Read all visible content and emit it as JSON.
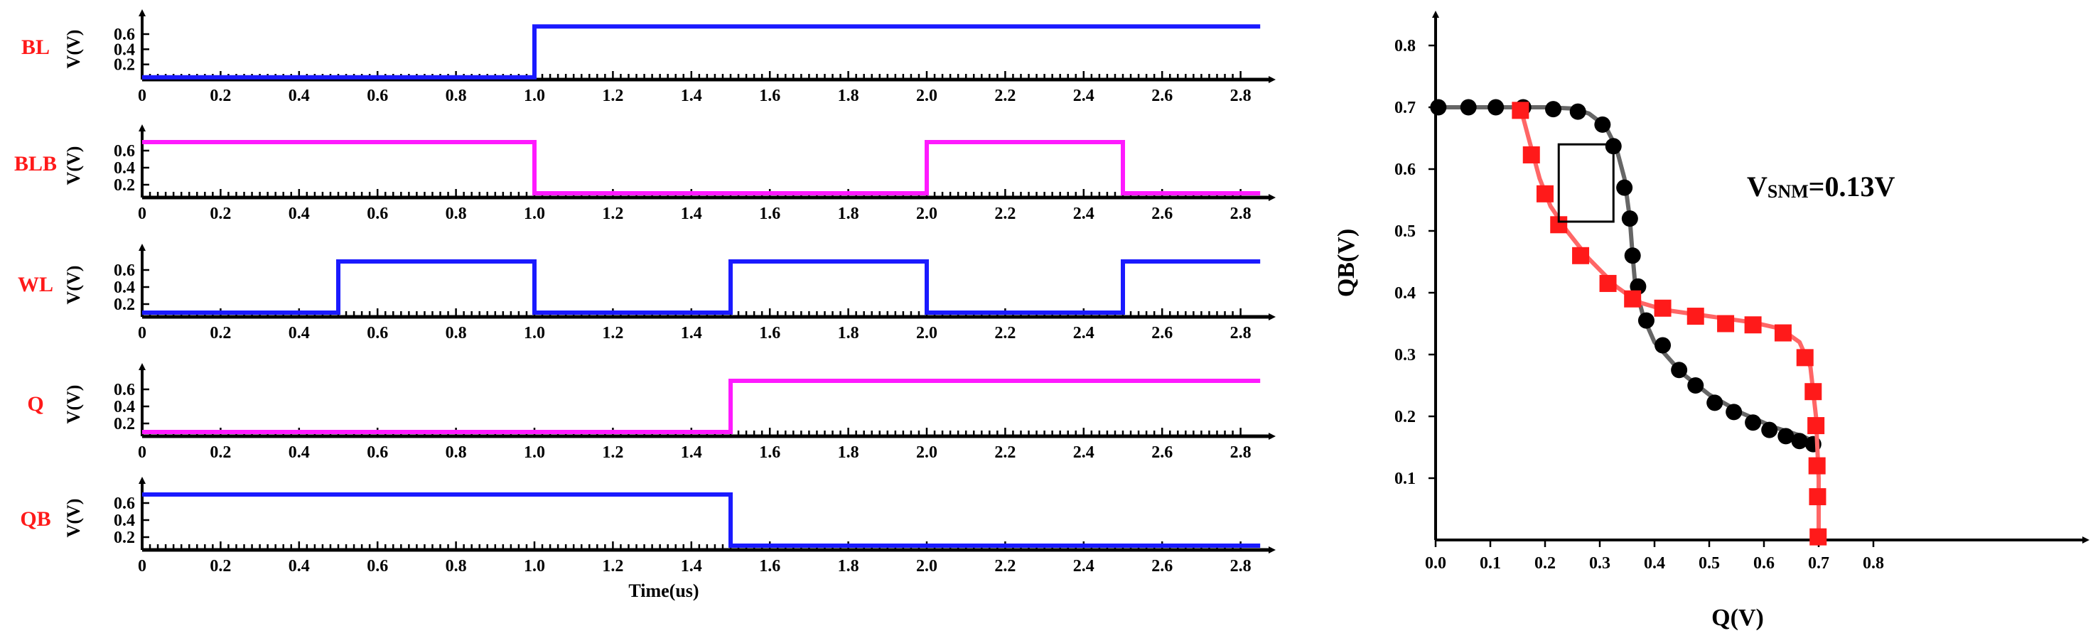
{
  "chart_data": [
    {
      "type": "line",
      "name": "timing-diagram",
      "xlabel": "Time(us)",
      "ylabel": "V(V)",
      "xlim": [
        0,
        2.8
      ],
      "x_ticks": [
        "0",
        "0.2",
        "0.4",
        "0.6",
        "0.8",
        "1.0",
        "1.2",
        "1.4",
        "1.6",
        "1.8",
        "2.0",
        "2.2",
        "2.4",
        "2.6",
        "2.8"
      ],
      "panels": [
        {
          "label": "BL",
          "color": "#1a1aff",
          "y_ticks": [
            "0.2",
            "0.4",
            "0.6"
          ],
          "y_tick_values": [
            0.2,
            0.4,
            0.6
          ],
          "ylim": [
            0,
            0.75
          ],
          "waveform": [
            [
              0,
              0.03
            ],
            [
              1.0,
              0.03
            ],
            [
              1.0,
              0.7
            ],
            [
              2.85,
              0.7
            ]
          ]
        },
        {
          "label": "BLB",
          "color": "#ff1aff",
          "y_ticks": [
            "0.2",
            "0.4",
            "0.6"
          ],
          "y_tick_values": [
            0.2,
            0.4,
            0.6
          ],
          "ylim": [
            0.05,
            0.75
          ],
          "waveform": [
            [
              0,
              0.7
            ],
            [
              1.0,
              0.7
            ],
            [
              1.0,
              0.1
            ],
            [
              2.0,
              0.1
            ],
            [
              2.0,
              0.7
            ],
            [
              2.5,
              0.7
            ],
            [
              2.5,
              0.1
            ],
            [
              2.85,
              0.1
            ]
          ]
        },
        {
          "label": "WL",
          "color": "#1a1aff",
          "y_ticks": [
            "0.2",
            "0.4",
            "0.6"
          ],
          "y_tick_values": [
            0.2,
            0.4,
            0.6
          ],
          "ylim": [
            0.05,
            0.75
          ],
          "waveform": [
            [
              0,
              0.1
            ],
            [
              0.5,
              0.1
            ],
            [
              0.5,
              0.7
            ],
            [
              1.0,
              0.7
            ],
            [
              1.0,
              0.1
            ],
            [
              1.5,
              0.1
            ],
            [
              1.5,
              0.7
            ],
            [
              2.0,
              0.7
            ],
            [
              2.0,
              0.1
            ],
            [
              2.5,
              0.1
            ],
            [
              2.5,
              0.7
            ],
            [
              2.85,
              0.7
            ]
          ]
        },
        {
          "label": "Q",
          "color": "#ff1aff",
          "y_ticks": [
            "0.2",
            "0.4",
            "0.6"
          ],
          "y_tick_values": [
            0.2,
            0.4,
            0.6
          ],
          "ylim": [
            0.05,
            0.75
          ],
          "waveform": [
            [
              0,
              0.1
            ],
            [
              1.5,
              0.1
            ],
            [
              1.5,
              0.7
            ],
            [
              2.85,
              0.7
            ]
          ]
        },
        {
          "label": "QB",
          "color": "#1a1aff",
          "y_ticks": [
            "0.2",
            "0.4",
            "0.6"
          ],
          "y_tick_values": [
            0.2,
            0.4,
            0.6
          ],
          "ylim": [
            0.05,
            0.75
          ],
          "waveform": [
            [
              0,
              0.7
            ],
            [
              1.5,
              0.7
            ],
            [
              1.5,
              0.1
            ],
            [
              2.85,
              0.1
            ]
          ]
        }
      ]
    },
    {
      "type": "scatter",
      "name": "butterfly-curve",
      "xlabel": "Q(V)",
      "ylabel": "QB(V)",
      "xlim": [
        0,
        0.8
      ],
      "ylim": [
        0,
        0.8
      ],
      "x_ticks": [
        "0.0",
        "0.1",
        "0.2",
        "0.3",
        "0.4",
        "0.5",
        "0.6",
        "0.7",
        "0.8"
      ],
      "x_tick_values": [
        0.0,
        0.1,
        0.2,
        0.3,
        0.4,
        0.5,
        0.6,
        0.7,
        0.8
      ],
      "y_ticks": [
        "0.1",
        "0.2",
        "0.3",
        "0.4",
        "0.5",
        "0.6",
        "0.7",
        "0.8"
      ],
      "y_tick_values": [
        0.1,
        0.2,
        0.3,
        0.4,
        0.5,
        0.6,
        0.7,
        0.8
      ],
      "annotation": {
        "main": "V",
        "sub": "SNM",
        "rest": "=0.13V"
      },
      "snm_box": {
        "q": [
          0.225,
          0.325
        ],
        "qb": [
          0.515,
          0.64
        ]
      },
      "series": [
        {
          "color": "#000000",
          "line_color": "#666666",
          "marker": "circle",
          "line": [
            [
              0.005,
              0.7
            ],
            [
              0.2,
              0.7
            ],
            [
              0.25,
              0.698
            ],
            [
              0.28,
              0.69
            ],
            [
              0.31,
              0.67
            ],
            [
              0.33,
              0.635
            ],
            [
              0.345,
              0.585
            ],
            [
              0.355,
              0.52
            ],
            [
              0.36,
              0.46
            ],
            [
              0.365,
              0.41
            ],
            [
              0.38,
              0.36
            ],
            [
              0.4,
              0.32
            ],
            [
              0.45,
              0.27
            ],
            [
              0.5,
              0.235
            ],
            [
              0.56,
              0.205
            ],
            [
              0.62,
              0.182
            ],
            [
              0.67,
              0.168
            ],
            [
              0.695,
              0.158
            ]
          ],
          "points": [
            [
              0.005,
              0.7
            ],
            [
              0.06,
              0.7
            ],
            [
              0.11,
              0.7
            ],
            [
              0.16,
              0.7
            ],
            [
              0.215,
              0.697
            ],
            [
              0.26,
              0.693
            ],
            [
              0.305,
              0.672
            ],
            [
              0.325,
              0.637
            ],
            [
              0.345,
              0.57
            ],
            [
              0.355,
              0.52
            ],
            [
              0.36,
              0.46
            ],
            [
              0.37,
              0.41
            ],
            [
              0.385,
              0.355
            ],
            [
              0.415,
              0.315
            ],
            [
              0.445,
              0.275
            ],
            [
              0.475,
              0.25
            ],
            [
              0.51,
              0.222
            ],
            [
              0.545,
              0.207
            ],
            [
              0.58,
              0.19
            ],
            [
              0.61,
              0.178
            ],
            [
              0.64,
              0.168
            ],
            [
              0.665,
              0.16
            ],
            [
              0.69,
              0.155
            ]
          ]
        },
        {
          "color": "#ff1a1a",
          "line_color": "#ff6666",
          "marker": "square",
          "line": [
            [
              0.155,
              0.7
            ],
            [
              0.17,
              0.65
            ],
            [
              0.19,
              0.585
            ],
            [
              0.21,
              0.54
            ],
            [
              0.24,
              0.5
            ],
            [
              0.28,
              0.455
            ],
            [
              0.33,
              0.41
            ],
            [
              0.37,
              0.385
            ],
            [
              0.42,
              0.372
            ],
            [
              0.5,
              0.362
            ],
            [
              0.58,
              0.352
            ],
            [
              0.63,
              0.342
            ],
            [
              0.665,
              0.32
            ],
            [
              0.685,
              0.28
            ],
            [
              0.695,
              0.2
            ],
            [
              0.7,
              0.1
            ],
            [
              0.7,
              0.0
            ]
          ],
          "points": [
            [
              0.155,
              0.695
            ],
            [
              0.175,
              0.623
            ],
            [
              0.2,
              0.56
            ],
            [
              0.225,
              0.51
            ],
            [
              0.265,
              0.46
            ],
            [
              0.315,
              0.415
            ],
            [
              0.36,
              0.39
            ],
            [
              0.415,
              0.375
            ],
            [
              0.475,
              0.362
            ],
            [
              0.53,
              0.35
            ],
            [
              0.58,
              0.348
            ],
            [
              0.635,
              0.335
            ],
            [
              0.675,
              0.295
            ],
            [
              0.69,
              0.24
            ],
            [
              0.695,
              0.185
            ],
            [
              0.697,
              0.12
            ],
            [
              0.698,
              0.07
            ],
            [
              0.699,
              0.005
            ]
          ]
        }
      ]
    }
  ]
}
